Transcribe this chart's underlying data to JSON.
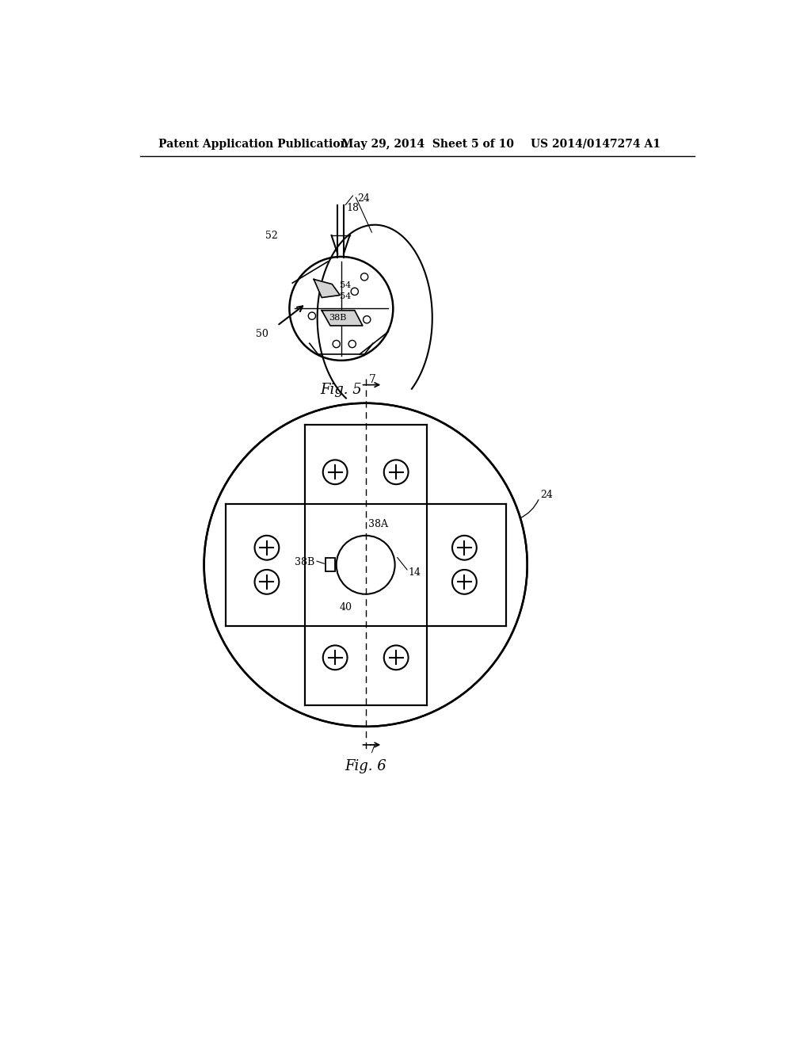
{
  "header_left": "Patent Application Publication",
  "header_center": "May 29, 2014  Sheet 5 of 10",
  "header_right": "US 2014/0147274 A1",
  "fig5_label": "Fig. 5",
  "fig6_label": "Fig. 6",
  "background_color": "#ffffff",
  "line_color": "#000000",
  "text_color": "#000000"
}
